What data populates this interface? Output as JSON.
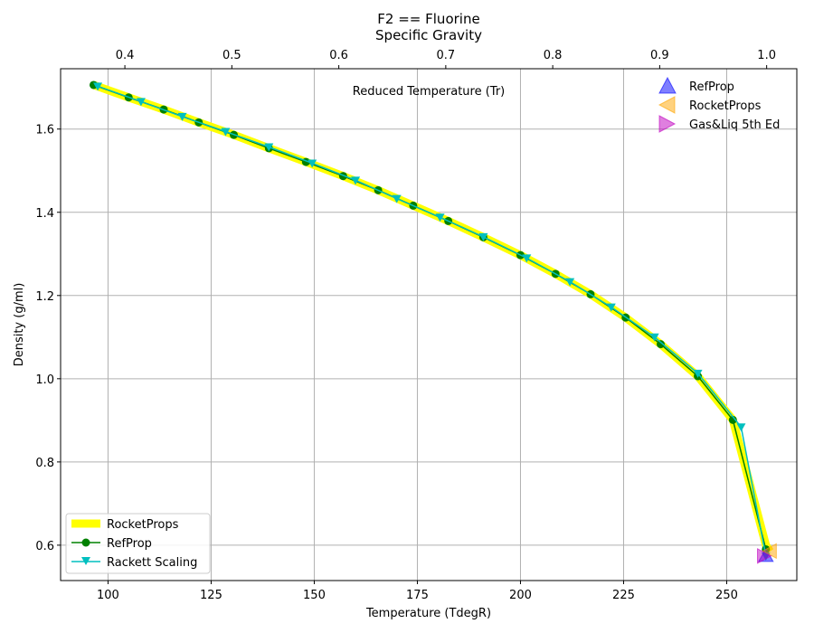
{
  "chart_data": {
    "type": "line",
    "title": "F2 == Fluorine",
    "subtitle": "Specific Gravity",
    "xlabel": "Temperature (TdegR)",
    "ylabel": "Density (g/ml)",
    "top_xlabel": "Reduced Temperature (Tr)",
    "xlim": [
      88.5,
      267
    ],
    "ylim": [
      0.515,
      1.745
    ],
    "top_xlim": [
      0.3399,
      1.0282
    ],
    "x_ticks": [
      100,
      125,
      150,
      175,
      200,
      225,
      250
    ],
    "y_ticks": [
      0.6,
      0.8,
      1.0,
      1.2,
      1.4,
      1.6
    ],
    "top_x_ticks": [
      0.4,
      0.5,
      0.6,
      0.7,
      0.8,
      0.9,
      1.0
    ],
    "grid": true,
    "legend_bottom_left": [
      "RocketProps",
      "RefProp",
      "Rackett Scaling"
    ],
    "legend_top_right": [
      "RefProp",
      "RocketProps",
      "Gas&Liq 5th Ed"
    ],
    "series": [
      {
        "name": "RocketProps",
        "color": "#ffff00",
        "style": "thick-line",
        "x": [
          96.5,
          105,
          113.5,
          122,
          130.5,
          139,
          148,
          157,
          165.5,
          174,
          182.5,
          191,
          200,
          208.5,
          217,
          225.5,
          234,
          243,
          251.5,
          259.5,
          260.5
        ],
        "y": [
          1.706,
          1.676,
          1.647,
          1.616,
          1.586,
          1.554,
          1.521,
          1.487,
          1.453,
          1.416,
          1.379,
          1.34,
          1.297,
          1.252,
          1.203,
          1.147,
          1.083,
          1.006,
          0.901,
          0.6,
          0.585
        ]
      },
      {
        "name": "RefProp",
        "color": "#008000",
        "style": "line-circle",
        "x": [
          96.5,
          105,
          113.5,
          122,
          130.5,
          139,
          148,
          157,
          165.5,
          174,
          182.5,
          191,
          200,
          208.5,
          217,
          225.5,
          234,
          243,
          251.5,
          259.5
        ],
        "y": [
          1.706,
          1.676,
          1.647,
          1.616,
          1.586,
          1.554,
          1.521,
          1.487,
          1.453,
          1.416,
          1.379,
          1.34,
          1.297,
          1.252,
          1.203,
          1.147,
          1.083,
          1.006,
          0.901,
          0.59
        ]
      },
      {
        "name": "Rackett Scaling",
        "color": "#00bfbf",
        "style": "line-triangle-down",
        "x": [
          97.5,
          108,
          118,
          128.5,
          139,
          149.5,
          160,
          170,
          180.5,
          191,
          201.5,
          212,
          222,
          232.5,
          243,
          253.5,
          259.5
        ],
        "y": [
          1.703,
          1.666,
          1.63,
          1.594,
          1.557,
          1.518,
          1.477,
          1.433,
          1.388,
          1.341,
          1.29,
          1.233,
          1.172,
          1.1,
          1.013,
          0.884,
          0.574
        ]
      },
      {
        "name": "RefProp",
        "marker": "triangle-up",
        "color": "#0000ff",
        "x": [
          259.5
        ],
        "y": [
          0.574
        ]
      },
      {
        "name": "RocketProps",
        "marker": "triangle-left",
        "color": "#ffa500",
        "x": [
          260.5
        ],
        "y": [
          0.586
        ]
      },
      {
        "name": "Gas&Liq 5th Ed",
        "marker": "triangle-right",
        "color": "#bf00bf",
        "x": [
          259
        ],
        "y": [
          0.574
        ]
      }
    ]
  }
}
